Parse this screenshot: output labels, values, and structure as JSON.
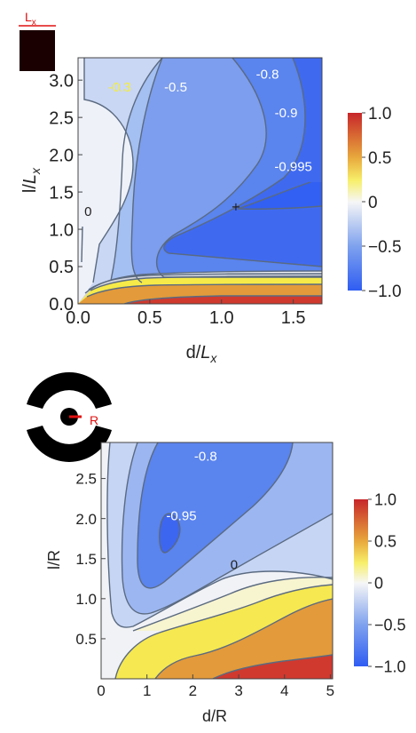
{
  "inset_top": {
    "label_main": "L",
    "label_sub": "x"
  },
  "inset_bottom": {
    "label": "R"
  },
  "chart_data": [
    {
      "type": "heatmap",
      "xlabel_main": "d/",
      "xlabel_var": "L",
      "xlabel_sub": "x",
      "ylabel_main": "l/",
      "ylabel_var": "L",
      "ylabel_sub": "x",
      "xlim": [
        0,
        1.7
      ],
      "ylim": [
        0,
        3.3
      ],
      "xticks": [
        0,
        0.5,
        1.0,
        1.5
      ],
      "xtick_labels": [
        "0.0",
        "0.5",
        "1.0",
        "1.5"
      ],
      "yticks": [
        0,
        0.5,
        1.0,
        1.5,
        2.0,
        2.5,
        3.0
      ],
      "ytick_labels": [
        "0.0",
        "0.5",
        "1.0",
        "1.5",
        "2.0",
        "2.5",
        "3.0"
      ],
      "colorbar": {
        "range": [
          -1.0,
          1.0
        ],
        "ticks": [
          1.0,
          0.5,
          0,
          -0.5,
          -1.0
        ],
        "tick_labels": [
          "1.0",
          "0.5",
          "0",
          "−0.5",
          "−1.0"
        ]
      },
      "contour_labels": [
        {
          "text": "-0.3",
          "x": 0.29,
          "y": 2.85,
          "color": "#f4ee3c"
        },
        {
          "text": "-0.5",
          "x": 0.68,
          "y": 2.85,
          "color": "#ffffff"
        },
        {
          "text": "-0.8",
          "x": 1.32,
          "y": 3.02,
          "color": "#ffffff"
        },
        {
          "text": "-0.9",
          "x": 1.45,
          "y": 2.5,
          "color": "#ffffff"
        },
        {
          "text": "-0.995",
          "x": 1.5,
          "y": 1.78,
          "color": "#ffffff"
        },
        {
          "text": "0",
          "x": 0.07,
          "y": 1.18,
          "color": "#222222"
        }
      ],
      "minimum_marker": {
        "x": 1.1,
        "y": 1.3
      }
    },
    {
      "type": "heatmap",
      "xlabel": "d/R",
      "ylabel": "l/R",
      "xlim": [
        0,
        5.05
      ],
      "ylim": [
        0,
        2.95
      ],
      "xticks": [
        0,
        1,
        2,
        3,
        4,
        5
      ],
      "xtick_labels": [
        "0",
        "1",
        "2",
        "3",
        "4",
        "5"
      ],
      "yticks": [
        0.5,
        1.0,
        1.5,
        2.0,
        2.5
      ],
      "ytick_labels": [
        "0.5",
        "1.0",
        "1.5",
        "2.0",
        "2.5"
      ],
      "colorbar": {
        "range": [
          -1.0,
          1.0
        ],
        "ticks": [
          1.0,
          0.5,
          0,
          -0.5,
          -1.0
        ],
        "tick_labels": [
          "1.0",
          "0.5",
          "0",
          "−0.5",
          "−1.0"
        ]
      },
      "contour_labels": [
        {
          "text": "-0.8",
          "x": 2.28,
          "y": 2.72,
          "color": "#ffffff"
        },
        {
          "text": "-0.95",
          "x": 1.75,
          "y": 1.98,
          "color": "#ffffff"
        },
        {
          "text": "0",
          "x": 2.9,
          "y": 1.37,
          "color": "#222222"
        }
      ]
    }
  ]
}
